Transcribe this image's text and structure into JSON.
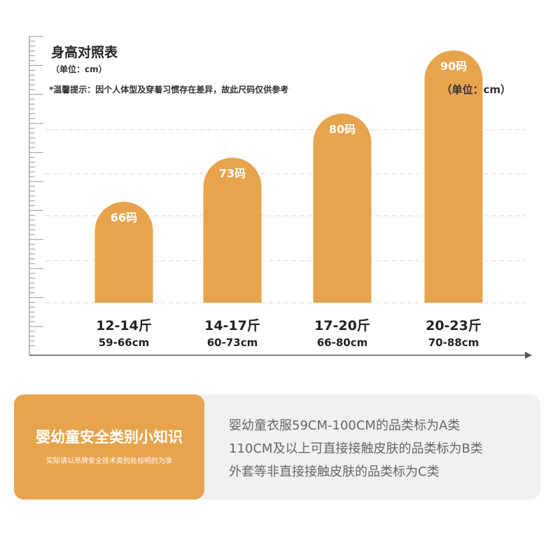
{
  "header": {
    "title": "身高对照表",
    "unit_small": "（单位：cm）",
    "tip": "*温馨提示：因个人体型及穿着习惯存在差异，故此尺码仅供参考",
    "unit_right": "（单位：cm）"
  },
  "chart_data": {
    "type": "bar",
    "categories": [
      "12-14斤",
      "14-17斤",
      "17-20斤",
      "20-23斤"
    ],
    "ranges": [
      "59-66cm",
      "60-73cm",
      "66-80cm",
      "70-88cm"
    ],
    "data_labels": [
      "66码",
      "73码",
      "80码",
      "90码"
    ],
    "values": [
      66,
      73,
      80,
      90
    ],
    "title": "身高对照表",
    "ylim": [
      50,
      100
    ],
    "grid": true,
    "colors": {
      "bar": "#e8a44d",
      "bar_label": "#ffffff",
      "axis": "#555555",
      "grid": "#e3e3e3"
    }
  },
  "info": {
    "title": "婴幼童安全类别小知识",
    "subtitle": "实际请以吊牌安全技术类别处标明的为准",
    "lines": [
      "婴幼童衣服59CM-100CM的品类标为A类",
      "110CM及以上可直接接触皮肤的品类标为B类",
      "外套等非直接接触皮肤的品类标为C类"
    ],
    "colors": {
      "accent": "#e8a44d",
      "panel": "#f1f1f1",
      "text": "#666666"
    }
  }
}
